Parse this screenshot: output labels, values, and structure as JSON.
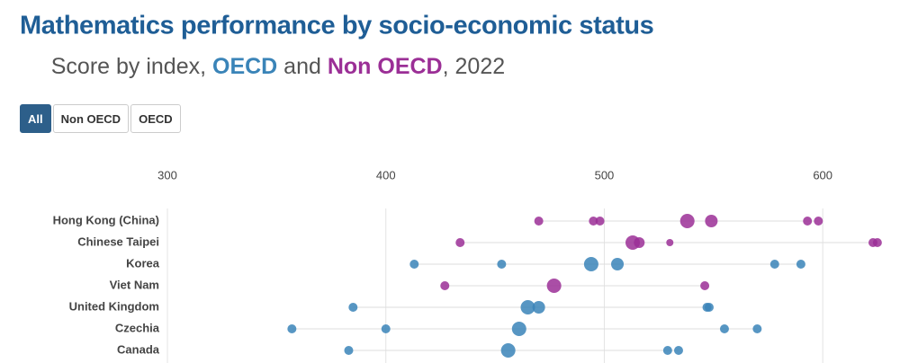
{
  "filters": [
    "All",
    "Non OECD",
    "OECD"
  ],
  "chart_data": {
    "type": "dot",
    "title": "Mathematics performance by socio-economic status",
    "subtitle": [
      "Score by index, ",
      "OECD",
      " and ",
      "Non OECD",
      ", 2022"
    ],
    "xlim": [
      300,
      630
    ],
    "xticks": [
      300,
      400,
      500,
      600
    ],
    "grid": true,
    "series": [
      {
        "name": "Hong Kong (China)",
        "color": "#9b2f96",
        "values": [
          470,
          495,
          498,
          538,
          549,
          593,
          598
        ],
        "sizes": [
          5,
          5,
          5,
          8,
          7,
          5,
          5
        ]
      },
      {
        "name": "Chinese Taipei",
        "color": "#9b2f96",
        "values": [
          434,
          513,
          516,
          530,
          623,
          625
        ],
        "sizes": [
          5,
          8,
          6,
          4,
          5,
          5
        ]
      },
      {
        "name": "Korea",
        "color": "#3a84b8",
        "values": [
          413,
          453,
          494,
          506,
          578,
          590
        ],
        "sizes": [
          5,
          5,
          8,
          7,
          5,
          5
        ]
      },
      {
        "name": "Viet Nam",
        "color": "#9b2f96",
        "values": [
          427,
          477,
          546
        ],
        "sizes": [
          5,
          8,
          5
        ]
      },
      {
        "name": "United Kingdom",
        "color": "#3a84b8",
        "values": [
          385,
          465,
          470,
          547,
          548
        ],
        "sizes": [
          5,
          8,
          7,
          5,
          5
        ]
      },
      {
        "name": "Czechia",
        "color": "#3a84b8",
        "values": [
          357,
          400,
          461,
          555,
          570
        ],
        "sizes": [
          5,
          5,
          8,
          5,
          5
        ]
      },
      {
        "name": "Canada",
        "color": "#3a84b8",
        "values": [
          383,
          456,
          529,
          534
        ],
        "sizes": [
          5,
          8,
          5,
          5
        ]
      }
    ]
  }
}
